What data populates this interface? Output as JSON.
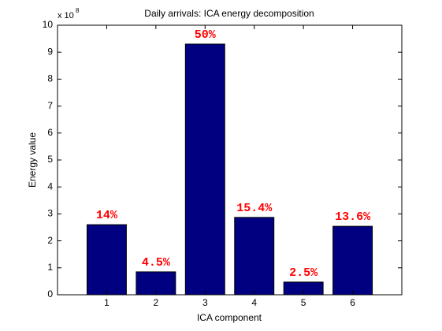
{
  "chart_data": {
    "type": "bar",
    "title": "Daily arrivals: ICA energy decomposition",
    "xlabel": "ICA component",
    "ylabel": "Energy value",
    "y_multiplier": {
      "base": "x 10",
      "exponent": "8"
    },
    "x": [
      1,
      2,
      3,
      4,
      5,
      6
    ],
    "values": [
      2.6,
      0.85,
      9.3,
      2.87,
      0.47,
      2.54
    ],
    "annotations": [
      "14%",
      "4.5%",
      "50%",
      "15.4%",
      "2.5%",
      "13.6%"
    ],
    "color": "#000080",
    "annotation_color": "#ff0000",
    "xlim": [
      0,
      7
    ],
    "xticks": [
      1,
      2,
      3,
      4,
      5,
      6
    ],
    "ylim": [
      0,
      10
    ],
    "yticks": [
      0,
      1,
      2,
      3,
      4,
      5,
      6,
      7,
      8,
      9,
      10
    ],
    "grid": false
  }
}
